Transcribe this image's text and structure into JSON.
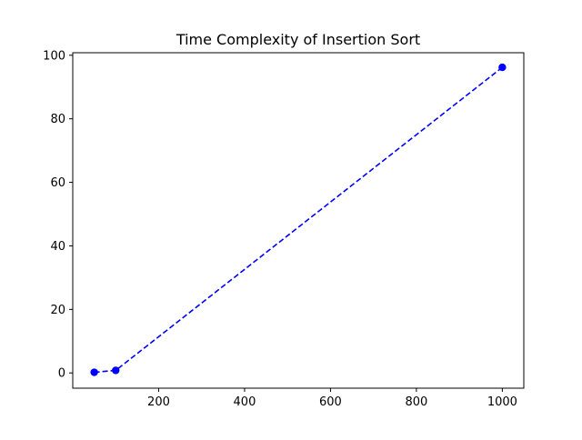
{
  "chart_data": {
    "type": "line",
    "title": "Time Complexity of Insertion Sort",
    "xlabel": "",
    "ylabel": "",
    "xlim": [
      0,
      1050
    ],
    "ylim": [
      -4.8,
      100.8
    ],
    "x_ticks": [
      200,
      400,
      600,
      800,
      1000
    ],
    "y_ticks": [
      0,
      20,
      40,
      60,
      80,
      100
    ],
    "x_tick_labels": [
      "200",
      "400",
      "600",
      "800",
      "1000"
    ],
    "y_tick_labels": [
      "0",
      "20",
      "40",
      "60",
      "80",
      "100"
    ],
    "grid": false,
    "series": [
      {
        "x": [
          50,
          100,
          1000
        ],
        "values": [
          0.2,
          0.8,
          96.2
        ],
        "color": "#0000ff",
        "line_style": "dashed",
        "marker": "circle"
      }
    ]
  }
}
